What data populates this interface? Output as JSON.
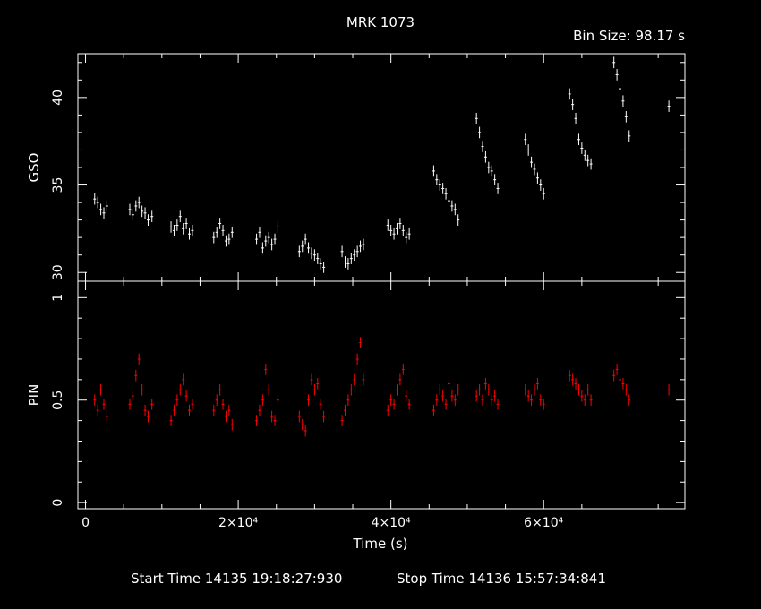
{
  "title": "MRK 1073",
  "bin_size": "Bin Size: 98.17 s",
  "footer": {
    "start": "Start Time 14135 19:18:27:930",
    "stop": "Stop Time 14136 15:57:34:841"
  },
  "colors": {
    "gso": "#ffffff",
    "pin": "#ff0000",
    "axes": "#ffffff",
    "background": "#000000"
  },
  "chart_data": [
    {
      "type": "scatter",
      "panel": "top",
      "ylabel": "GSO",
      "xlabel": "",
      "xlim": [
        -1000,
        78500
      ],
      "ylim": [
        29.5,
        42.5
      ],
      "y_ticks": [
        30,
        35,
        40
      ],
      "y_tick_labels": [
        "30",
        "35",
        "40"
      ],
      "series": [
        {
          "color": "#ffffff",
          "error_bars": true,
          "x": [
            1200,
            1600,
            2000,
            2400,
            2800,
            5800,
            6200,
            6600,
            7000,
            7400,
            7800,
            8200,
            8700,
            11200,
            11600,
            12000,
            12400,
            12800,
            13200,
            13600,
            14000,
            16800,
            17200,
            17600,
            18000,
            18400,
            18800,
            19200,
            22400,
            22800,
            23200,
            23600,
            24000,
            24400,
            24800,
            25200,
            28000,
            28400,
            28800,
            29200,
            29600,
            30000,
            30400,
            30800,
            31200,
            33600,
            34000,
            34400,
            34800,
            35200,
            35600,
            36000,
            36400,
            39600,
            40000,
            40400,
            40800,
            41200,
            41600,
            42000,
            42400,
            45600,
            46000,
            46400,
            46800,
            47200,
            47600,
            48000,
            48400,
            48800,
            51200,
            51600,
            52000,
            52400,
            52800,
            53200,
            53600,
            54000,
            57600,
            58000,
            58400,
            58800,
            59200,
            59600,
            60000,
            63400,
            63800,
            64200,
            64600,
            65000,
            65400,
            65800,
            66200,
            69200,
            69600,
            70000,
            70400,
            70800,
            71200,
            76400
          ],
          "y": [
            34.2,
            34.0,
            33.6,
            33.4,
            33.8,
            33.6,
            33.3,
            33.8,
            34.0,
            33.5,
            33.4,
            33.0,
            33.2,
            32.6,
            32.4,
            32.7,
            33.2,
            32.5,
            32.8,
            32.2,
            32.4,
            32.0,
            32.3,
            32.8,
            32.4,
            31.8,
            31.9,
            32.3,
            31.9,
            32.3,
            31.4,
            31.8,
            32.0,
            31.6,
            31.9,
            32.6,
            31.2,
            31.5,
            31.9,
            31.4,
            31.1,
            31.0,
            30.8,
            30.5,
            30.3,
            31.2,
            30.6,
            30.5,
            30.8,
            31.0,
            31.2,
            31.5,
            31.6,
            32.7,
            32.4,
            32.2,
            32.5,
            32.8,
            32.4,
            32.0,
            32.2,
            35.8,
            35.3,
            35.0,
            34.8,
            34.5,
            34.1,
            33.8,
            33.6,
            33.0,
            38.8,
            38.0,
            37.2,
            36.6,
            36.0,
            35.8,
            35.3,
            34.8,
            37.6,
            37.0,
            36.3,
            35.9,
            35.4,
            35.0,
            34.5,
            40.2,
            39.6,
            38.8,
            37.6,
            37.1,
            36.7,
            36.4,
            36.2,
            42.0,
            41.3,
            40.5,
            39.8,
            38.9,
            37.8,
            39.5
          ]
        }
      ]
    },
    {
      "type": "scatter",
      "panel": "bottom",
      "ylabel": "PIN",
      "xlabel": "Time (s)",
      "xlim": [
        -1000,
        78500
      ],
      "ylim": [
        -0.03,
        1.08
      ],
      "y_ticks": [
        0,
        0.5,
        1
      ],
      "y_tick_labels": [
        "0",
        "0.5",
        "1"
      ],
      "x_ticks": [
        0,
        20000,
        40000,
        60000
      ],
      "x_tick_labels": [
        "0",
        "2×10⁴",
        "4×10⁴",
        "6×10⁴"
      ],
      "series": [
        {
          "color": "#ff0000",
          "error_bars": true,
          "x": [
            1200,
            1600,
            2000,
            2400,
            2800,
            5800,
            6200,
            6600,
            7000,
            7400,
            7800,
            8200,
            8700,
            11200,
            11600,
            12000,
            12400,
            12800,
            13200,
            13600,
            14000,
            16800,
            17200,
            17600,
            18000,
            18400,
            18800,
            19200,
            22400,
            22800,
            23200,
            23600,
            24000,
            24400,
            24800,
            25200,
            28000,
            28400,
            28800,
            29200,
            29600,
            30000,
            30400,
            30800,
            31200,
            33600,
            34000,
            34400,
            34800,
            35200,
            35600,
            36000,
            36400,
            39600,
            40000,
            40400,
            40800,
            41200,
            41600,
            42000,
            42400,
            45600,
            46000,
            46400,
            46800,
            47200,
            47600,
            48000,
            48400,
            48800,
            51200,
            51600,
            52000,
            52400,
            52800,
            53200,
            53600,
            54000,
            57600,
            58000,
            58400,
            58800,
            59200,
            59600,
            60000,
            63400,
            63800,
            64200,
            64600,
            65000,
            65400,
            65800,
            66200,
            69200,
            69600,
            70000,
            70400,
            70800,
            71200,
            76400
          ],
          "y": [
            0.5,
            0.45,
            0.55,
            0.48,
            0.42,
            0.48,
            0.52,
            0.62,
            0.7,
            0.55,
            0.45,
            0.42,
            0.48,
            0.4,
            0.45,
            0.5,
            0.55,
            0.6,
            0.52,
            0.45,
            0.48,
            0.45,
            0.5,
            0.55,
            0.48,
            0.42,
            0.45,
            0.38,
            0.4,
            0.45,
            0.5,
            0.65,
            0.55,
            0.42,
            0.4,
            0.5,
            0.42,
            0.38,
            0.35,
            0.5,
            0.6,
            0.55,
            0.58,
            0.48,
            0.42,
            0.4,
            0.45,
            0.5,
            0.55,
            0.6,
            0.7,
            0.78,
            0.6,
            0.45,
            0.5,
            0.48,
            0.55,
            0.6,
            0.65,
            0.52,
            0.48,
            0.45,
            0.5,
            0.55,
            0.52,
            0.48,
            0.58,
            0.52,
            0.5,
            0.55,
            0.52,
            0.55,
            0.5,
            0.58,
            0.55,
            0.5,
            0.52,
            0.48,
            0.55,
            0.52,
            0.5,
            0.55,
            0.58,
            0.5,
            0.48,
            0.62,
            0.6,
            0.58,
            0.55,
            0.52,
            0.5,
            0.55,
            0.5,
            0.62,
            0.65,
            0.6,
            0.58,
            0.55,
            0.5,
            0.55
          ]
        }
      ]
    }
  ]
}
